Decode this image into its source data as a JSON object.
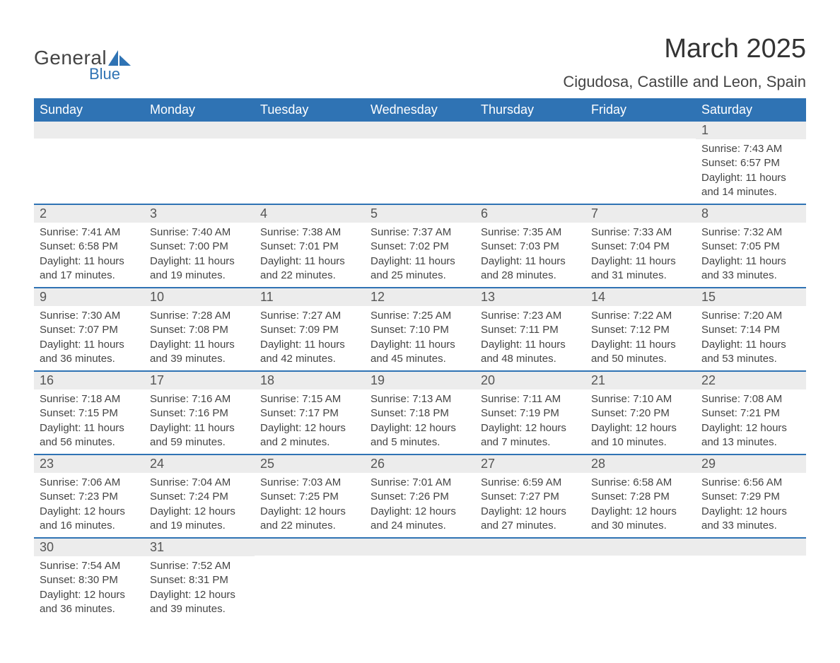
{
  "logo": {
    "main": "General",
    "sub": "Blue"
  },
  "title": "March 2025",
  "location": "Cigudosa, Castille and Leon, Spain",
  "colors": {
    "header_bg": "#2f73b4",
    "header_text": "#ffffff",
    "daynum_bg": "#ececec",
    "row_divider": "#2f73b4",
    "text": "#444444",
    "page_bg": "#ffffff"
  },
  "typography": {
    "title_fontsize": 38,
    "location_fontsize": 22,
    "weekday_fontsize": 18,
    "daynum_fontsize": 18,
    "body_fontsize": 15
  },
  "weekdays": [
    "Sunday",
    "Monday",
    "Tuesday",
    "Wednesday",
    "Thursday",
    "Friday",
    "Saturday"
  ],
  "weeks": [
    [
      {
        "n": "",
        "sr": "",
        "ss": "",
        "dl": ""
      },
      {
        "n": "",
        "sr": "",
        "ss": "",
        "dl": ""
      },
      {
        "n": "",
        "sr": "",
        "ss": "",
        "dl": ""
      },
      {
        "n": "",
        "sr": "",
        "ss": "",
        "dl": ""
      },
      {
        "n": "",
        "sr": "",
        "ss": "",
        "dl": ""
      },
      {
        "n": "",
        "sr": "",
        "ss": "",
        "dl": ""
      },
      {
        "n": "1",
        "sr": "Sunrise: 7:43 AM",
        "ss": "Sunset: 6:57 PM",
        "dl": "Daylight: 11 hours and 14 minutes."
      }
    ],
    [
      {
        "n": "2",
        "sr": "Sunrise: 7:41 AM",
        "ss": "Sunset: 6:58 PM",
        "dl": "Daylight: 11 hours and 17 minutes."
      },
      {
        "n": "3",
        "sr": "Sunrise: 7:40 AM",
        "ss": "Sunset: 7:00 PM",
        "dl": "Daylight: 11 hours and 19 minutes."
      },
      {
        "n": "4",
        "sr": "Sunrise: 7:38 AM",
        "ss": "Sunset: 7:01 PM",
        "dl": "Daylight: 11 hours and 22 minutes."
      },
      {
        "n": "5",
        "sr": "Sunrise: 7:37 AM",
        "ss": "Sunset: 7:02 PM",
        "dl": "Daylight: 11 hours and 25 minutes."
      },
      {
        "n": "6",
        "sr": "Sunrise: 7:35 AM",
        "ss": "Sunset: 7:03 PM",
        "dl": "Daylight: 11 hours and 28 minutes."
      },
      {
        "n": "7",
        "sr": "Sunrise: 7:33 AM",
        "ss": "Sunset: 7:04 PM",
        "dl": "Daylight: 11 hours and 31 minutes."
      },
      {
        "n": "8",
        "sr": "Sunrise: 7:32 AM",
        "ss": "Sunset: 7:05 PM",
        "dl": "Daylight: 11 hours and 33 minutes."
      }
    ],
    [
      {
        "n": "9",
        "sr": "Sunrise: 7:30 AM",
        "ss": "Sunset: 7:07 PM",
        "dl": "Daylight: 11 hours and 36 minutes."
      },
      {
        "n": "10",
        "sr": "Sunrise: 7:28 AM",
        "ss": "Sunset: 7:08 PM",
        "dl": "Daylight: 11 hours and 39 minutes."
      },
      {
        "n": "11",
        "sr": "Sunrise: 7:27 AM",
        "ss": "Sunset: 7:09 PM",
        "dl": "Daylight: 11 hours and 42 minutes."
      },
      {
        "n": "12",
        "sr": "Sunrise: 7:25 AM",
        "ss": "Sunset: 7:10 PM",
        "dl": "Daylight: 11 hours and 45 minutes."
      },
      {
        "n": "13",
        "sr": "Sunrise: 7:23 AM",
        "ss": "Sunset: 7:11 PM",
        "dl": "Daylight: 11 hours and 48 minutes."
      },
      {
        "n": "14",
        "sr": "Sunrise: 7:22 AM",
        "ss": "Sunset: 7:12 PM",
        "dl": "Daylight: 11 hours and 50 minutes."
      },
      {
        "n": "15",
        "sr": "Sunrise: 7:20 AM",
        "ss": "Sunset: 7:14 PM",
        "dl": "Daylight: 11 hours and 53 minutes."
      }
    ],
    [
      {
        "n": "16",
        "sr": "Sunrise: 7:18 AM",
        "ss": "Sunset: 7:15 PM",
        "dl": "Daylight: 11 hours and 56 minutes."
      },
      {
        "n": "17",
        "sr": "Sunrise: 7:16 AM",
        "ss": "Sunset: 7:16 PM",
        "dl": "Daylight: 11 hours and 59 minutes."
      },
      {
        "n": "18",
        "sr": "Sunrise: 7:15 AM",
        "ss": "Sunset: 7:17 PM",
        "dl": "Daylight: 12 hours and 2 minutes."
      },
      {
        "n": "19",
        "sr": "Sunrise: 7:13 AM",
        "ss": "Sunset: 7:18 PM",
        "dl": "Daylight: 12 hours and 5 minutes."
      },
      {
        "n": "20",
        "sr": "Sunrise: 7:11 AM",
        "ss": "Sunset: 7:19 PM",
        "dl": "Daylight: 12 hours and 7 minutes."
      },
      {
        "n": "21",
        "sr": "Sunrise: 7:10 AM",
        "ss": "Sunset: 7:20 PM",
        "dl": "Daylight: 12 hours and 10 minutes."
      },
      {
        "n": "22",
        "sr": "Sunrise: 7:08 AM",
        "ss": "Sunset: 7:21 PM",
        "dl": "Daylight: 12 hours and 13 minutes."
      }
    ],
    [
      {
        "n": "23",
        "sr": "Sunrise: 7:06 AM",
        "ss": "Sunset: 7:23 PM",
        "dl": "Daylight: 12 hours and 16 minutes."
      },
      {
        "n": "24",
        "sr": "Sunrise: 7:04 AM",
        "ss": "Sunset: 7:24 PM",
        "dl": "Daylight: 12 hours and 19 minutes."
      },
      {
        "n": "25",
        "sr": "Sunrise: 7:03 AM",
        "ss": "Sunset: 7:25 PM",
        "dl": "Daylight: 12 hours and 22 minutes."
      },
      {
        "n": "26",
        "sr": "Sunrise: 7:01 AM",
        "ss": "Sunset: 7:26 PM",
        "dl": "Daylight: 12 hours and 24 minutes."
      },
      {
        "n": "27",
        "sr": "Sunrise: 6:59 AM",
        "ss": "Sunset: 7:27 PM",
        "dl": "Daylight: 12 hours and 27 minutes."
      },
      {
        "n": "28",
        "sr": "Sunrise: 6:58 AM",
        "ss": "Sunset: 7:28 PM",
        "dl": "Daylight: 12 hours and 30 minutes."
      },
      {
        "n": "29",
        "sr": "Sunrise: 6:56 AM",
        "ss": "Sunset: 7:29 PM",
        "dl": "Daylight: 12 hours and 33 minutes."
      }
    ],
    [
      {
        "n": "30",
        "sr": "Sunrise: 7:54 AM",
        "ss": "Sunset: 8:30 PM",
        "dl": "Daylight: 12 hours and 36 minutes."
      },
      {
        "n": "31",
        "sr": "Sunrise: 7:52 AM",
        "ss": "Sunset: 8:31 PM",
        "dl": "Daylight: 12 hours and 39 minutes."
      },
      {
        "n": "",
        "sr": "",
        "ss": "",
        "dl": ""
      },
      {
        "n": "",
        "sr": "",
        "ss": "",
        "dl": ""
      },
      {
        "n": "",
        "sr": "",
        "ss": "",
        "dl": ""
      },
      {
        "n": "",
        "sr": "",
        "ss": "",
        "dl": ""
      },
      {
        "n": "",
        "sr": "",
        "ss": "",
        "dl": ""
      }
    ]
  ]
}
